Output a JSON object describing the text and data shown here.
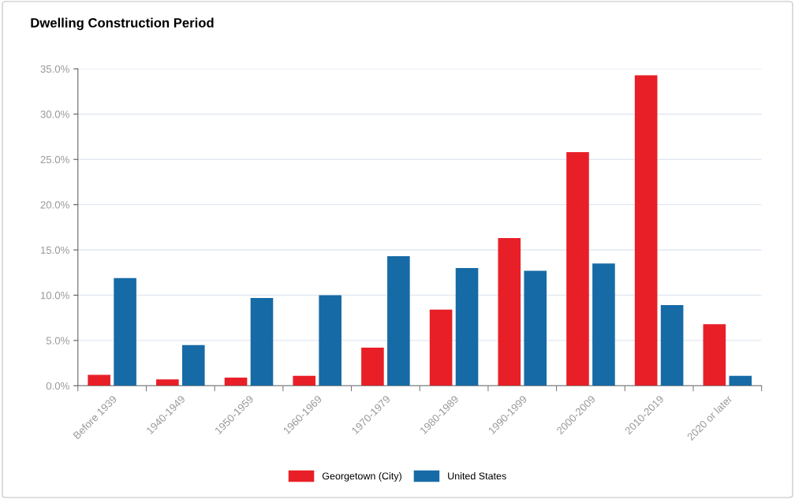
{
  "chart_data": {
    "type": "bar",
    "title": "Dwelling Construction Period",
    "categories": [
      "Before 1939",
      "1940-1949",
      "1950-1959",
      "1960-1969",
      "1970-1979",
      "1980-1989",
      "1990-1999",
      "2000-2009",
      "2010-2019",
      "2020 or later"
    ],
    "series": [
      {
        "name": "Georgetown (City)",
        "color": "#e81f27",
        "values": [
          1.2,
          0.7,
          0.9,
          1.1,
          4.2,
          8.4,
          16.3,
          25.8,
          34.3,
          6.8
        ]
      },
      {
        "name": "United States",
        "color": "#166ba6",
        "values": [
          11.9,
          4.5,
          9.7,
          10.0,
          14.3,
          13.0,
          12.7,
          13.5,
          8.9,
          1.1
        ]
      }
    ],
    "ylim": [
      0,
      35
    ],
    "yticks": [
      {
        "value": 0,
        "label": "0.0%"
      },
      {
        "value": 5,
        "label": "5.0%"
      },
      {
        "value": 10,
        "label": "10.0%"
      },
      {
        "value": 15,
        "label": "15.0%"
      },
      {
        "value": 20,
        "label": "20.0%"
      },
      {
        "value": 25,
        "label": "25.0%"
      },
      {
        "value": 30,
        "label": "30.0%"
      },
      {
        "value": 35,
        "label": "35.0%"
      }
    ],
    "grid": "y",
    "legend": "bottom"
  }
}
